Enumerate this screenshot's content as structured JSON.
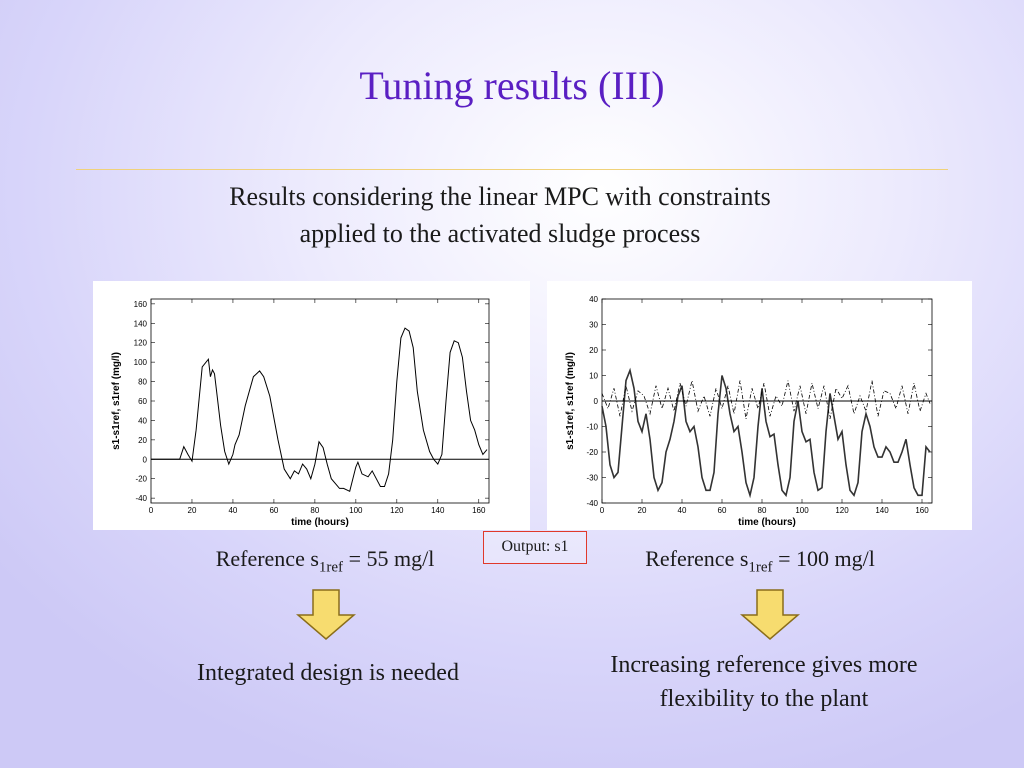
{
  "slide": {
    "title": "Tuning results (III)",
    "subtitle_line1": "Results considering the linear MPC with constraints",
    "subtitle_line2": "applied to the activated sludge process",
    "note": "Output: s1",
    "left": {
      "ref_prefix": "Reference s",
      "ref_sub": "1ref",
      "ref_suffix": " = 55 mg/l",
      "conclusion_line1": "Integrated design is needed"
    },
    "right": {
      "ref_prefix": "Reference s",
      "ref_sub": "1ref",
      "ref_suffix": " = 100 mg/l",
      "conclusion_line1": "Increasing reference gives more",
      "conclusion_line2": "flexibility to the plant"
    },
    "colors": {
      "title": "#5a1fc3",
      "rule": "#f0d27a",
      "arrow_fill": "#f7dc6f",
      "arrow_stroke": "#8a6d1a",
      "note_border": "#e0392b"
    }
  },
  "chart_data": [
    {
      "type": "line",
      "xlabel": "time (hours)",
      "ylabel": "s1-s1ref, s1ref (mg/l)",
      "xlim": [
        0,
        165
      ],
      "ylim": [
        -45,
        165
      ],
      "xticks": [
        0,
        20,
        40,
        60,
        80,
        100,
        120,
        140,
        160
      ],
      "yticks": [
        -40,
        -20,
        0,
        20,
        40,
        60,
        80,
        100,
        120,
        140,
        160
      ],
      "grid": false,
      "series": [
        {
          "style": "solid",
          "x": [
            0,
            14,
            16,
            18,
            20,
            22,
            25,
            28,
            29,
            30,
            31,
            32,
            34,
            36,
            38,
            40,
            41,
            43,
            46,
            50,
            53,
            55,
            58,
            62,
            65,
            68,
            70,
            72,
            74,
            76,
            78,
            80,
            82,
            84,
            86,
            88,
            90,
            92,
            94,
            97,
            100,
            101,
            103,
            106,
            108,
            110,
            112,
            114,
            116,
            118,
            120,
            122,
            124,
            126,
            128,
            130,
            133,
            136,
            138,
            140,
            142,
            144,
            146,
            148,
            150,
            152,
            154,
            156,
            158,
            160,
            162,
            164
          ],
          "y": [
            0,
            0,
            13,
            5,
            -2,
            30,
            95,
            103,
            85,
            92,
            88,
            70,
            35,
            8,
            -5,
            5,
            15,
            25,
            55,
            85,
            91,
            85,
            65,
            20,
            -10,
            -20,
            -12,
            -15,
            -5,
            -10,
            -20,
            -5,
            18,
            12,
            -5,
            -20,
            -25,
            -30,
            -30,
            -33,
            -8,
            -3,
            -15,
            -18,
            -12,
            -20,
            -28,
            -28,
            -15,
            20,
            80,
            125,
            135,
            132,
            115,
            70,
            30,
            8,
            0,
            -5,
            5,
            60,
            110,
            122,
            120,
            105,
            70,
            40,
            30,
            15,
            5,
            10
          ]
        },
        {
          "style": "solid-reference",
          "x": [
            0,
            165
          ],
          "y": [
            0,
            0
          ]
        }
      ]
    },
    {
      "type": "line",
      "xlabel": "time (hours)",
      "ylabel": "s1-s1ref, s1ref (mg/l)",
      "xlim": [
        0,
        165
      ],
      "ylim": [
        -40,
        40
      ],
      "xticks": [
        0,
        20,
        40,
        60,
        80,
        100,
        120,
        140,
        160
      ],
      "yticks": [
        -40,
        -30,
        -20,
        -10,
        0,
        10,
        20,
        30,
        40
      ],
      "grid": false,
      "series": [
        {
          "style": "solid",
          "x": [
            0,
            2,
            4,
            6,
            8,
            10,
            12,
            14,
            16,
            18,
            20,
            22,
            24,
            26,
            28,
            30,
            32,
            34,
            36,
            38,
            40,
            42,
            44,
            46,
            48,
            50,
            52,
            54,
            56,
            58,
            60,
            62,
            64,
            66,
            68,
            70,
            72,
            74,
            76,
            78,
            80,
            82,
            84,
            86,
            88,
            90,
            92,
            94,
            96,
            98,
            100,
            102,
            104,
            106,
            108,
            110,
            112,
            114,
            116,
            118,
            120,
            122,
            124,
            126,
            128,
            130,
            132,
            134,
            136,
            138,
            140,
            142,
            144,
            146,
            148,
            150,
            152,
            154,
            156,
            158,
            160,
            162,
            164
          ],
          "y": [
            -2,
            -10,
            -25,
            -30,
            -28,
            -10,
            8,
            12,
            5,
            -8,
            -12,
            -5,
            -15,
            -30,
            -35,
            -32,
            -20,
            -15,
            -8,
            2,
            6,
            -8,
            -12,
            -10,
            -18,
            -30,
            -35,
            -35,
            -28,
            -5,
            10,
            5,
            -5,
            -12,
            -10,
            -20,
            -32,
            -37,
            -30,
            -10,
            5,
            -8,
            -14,
            -13,
            -25,
            -35,
            -37,
            -30,
            -8,
            0,
            -12,
            -16,
            -15,
            -28,
            -35,
            -34,
            -12,
            3,
            -6,
            -15,
            -12,
            -25,
            -35,
            -37,
            -32,
            -12,
            -5,
            -10,
            -18,
            -22,
            -22,
            -18,
            -20,
            -24,
            -24,
            -20,
            -15,
            -25,
            -34,
            -37,
            -37,
            -18,
            -20
          ]
        },
        {
          "style": "dashdot",
          "x": [
            0,
            3,
            6,
            9,
            12,
            15,
            18,
            21,
            24,
            27,
            30,
            33,
            36,
            39,
            42,
            45,
            48,
            51,
            54,
            57,
            60,
            63,
            66,
            69,
            72,
            75,
            78,
            81,
            84,
            87,
            90,
            93,
            96,
            99,
            102,
            105,
            108,
            111,
            114,
            117,
            120,
            123,
            126,
            129,
            132,
            135,
            138,
            141,
            144,
            147,
            150,
            153,
            156,
            159,
            162,
            164
          ],
          "y": [
            3,
            -3,
            5,
            -6,
            6,
            -4,
            4,
            2,
            -5,
            6,
            -3,
            5,
            -4,
            7,
            -2,
            8,
            -4,
            2,
            -6,
            5,
            -3,
            6,
            -5,
            8,
            -7,
            5,
            -3,
            7,
            -6,
            2,
            -2,
            8,
            -4,
            6,
            -5,
            7,
            -3,
            6,
            -7,
            5,
            1,
            6,
            -5,
            2,
            -4,
            8,
            -6,
            4,
            3,
            -3,
            6,
            -5,
            7,
            -4,
            3,
            -1
          ]
        },
        {
          "style": "solid-reference",
          "x": [
            0,
            165
          ],
          "y": [
            0,
            0
          ]
        }
      ]
    }
  ]
}
